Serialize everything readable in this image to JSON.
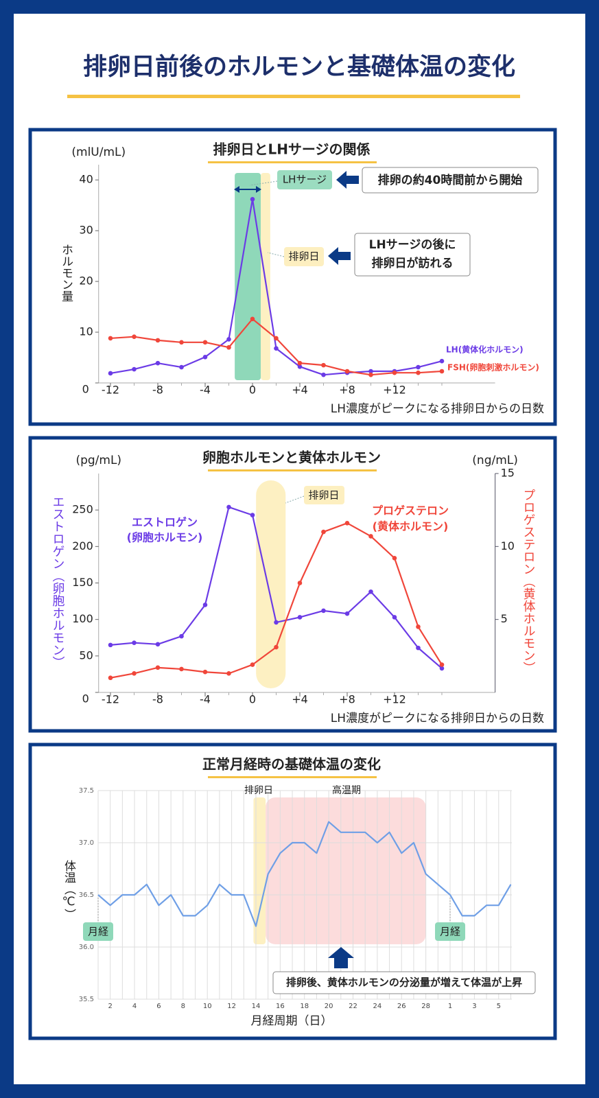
{
  "title": "排卵日前後のホルモンと基礎体温の変化",
  "chart_data": [
    {
      "type": "line",
      "title": "排卵日とLHサージの関係",
      "y_unit": "(mlU/mL)",
      "ylabel": "ホルモン量",
      "xlabel": "LH濃度がピークになる排卵日からの日数",
      "x": [
        -12,
        -10,
        -8,
        -6,
        -4,
        -2,
        0,
        2,
        4,
        6,
        8,
        10,
        12,
        14,
        16
      ],
      "xlim": [
        -13,
        20.5
      ],
      "xticks": [
        -12,
        -8,
        -4,
        0,
        {
          "value": 4,
          "label": "+4"
        },
        {
          "value": 8,
          "label": "+8"
        },
        {
          "value": 12,
          "label": "+12"
        }
      ],
      "ylim": [
        0,
        43
      ],
      "yticks": [
        0,
        10,
        20,
        30,
        40
      ],
      "series": [
        {
          "name": "LH(黄体化ホルモン)",
          "color": "#6b3be6",
          "values": [
            1.9,
            2.7,
            3.9,
            3.1,
            5.1,
            8.6,
            36.2,
            6.8,
            3.2,
            1.6,
            2.0,
            2.3,
            2.3,
            3.1,
            4.3
          ]
        },
        {
          "name": "FSH(卵胞刺激ホルモン)",
          "color": "#f0463a",
          "values": [
            8.8,
            9.1,
            8.4,
            8.0,
            8.0,
            7.0,
            12.6,
            8.8,
            3.9,
            3.5,
            2.3,
            1.6,
            2.0,
            2.0,
            2.3
          ]
        }
      ],
      "highlights": [
        {
          "label": "LHサージ",
          "x": [
            -1.5,
            0.7
          ],
          "color": "#8fd8b9"
        },
        {
          "label": "排卵日",
          "x": [
            0.7,
            1.5
          ],
          "color": "#fdf0c2"
        }
      ],
      "annotations": [
        {
          "lines": [
            "排卵の約40時間前から開始"
          ]
        },
        {
          "lines": [
            "LHサージの後に",
            "排卵日が訪れる"
          ]
        }
      ]
    },
    {
      "type": "line",
      "title": "卵胞ホルモンと黄体ホルモン",
      "y_unit": "(pg/mL)",
      "y2_unit": "(ng/mL)",
      "ylabel": "エストロゲン（卵胞ホルモン）",
      "y2label": "プロゲステロン（黄体ホルモン）",
      "xlabel": "LH濃度がピークになる排卵日からの日数",
      "x": [
        -12,
        -10,
        -8,
        -6,
        -4,
        -2,
        0,
        2,
        4,
        6,
        8,
        10,
        12,
        14,
        16
      ],
      "xlim": [
        -13,
        20.5
      ],
      "xticks": [
        -12,
        -8,
        -4,
        0,
        {
          "value": 4,
          "label": "+4"
        },
        {
          "value": 8,
          "label": "+8"
        },
        {
          "value": 12,
          "label": "+12"
        }
      ],
      "ylim": [
        0,
        300
      ],
      "yticks": [
        0,
        50,
        100,
        150,
        200,
        250
      ],
      "y2lim": [
        0,
        15
      ],
      "y2ticks": [
        5,
        10,
        15
      ],
      "series": [
        {
          "name": "エストロゲン",
          "name_sub": "(卵胞ホルモン)",
          "color": "#6b3be6",
          "values": [
            65,
            68,
            66,
            77,
            120,
            254,
            243,
            96,
            103,
            112,
            108,
            138,
            103,
            61,
            33
          ]
        },
        {
          "name": "プロゲステロン",
          "name_sub": "(黄体ホルモン)",
          "color": "#f0463a",
          "axis": "y2",
          "values": [
            1.0,
            1.3,
            1.7,
            1.6,
            1.4,
            1.3,
            1.9,
            3.1,
            7.5,
            11.0,
            11.6,
            10.7,
            9.2,
            4.5,
            1.9
          ]
        }
      ],
      "highlights": [
        {
          "label": "排卵日",
          "x": [
            0.3,
            2.8
          ],
          "color": "#fdf0c2"
        }
      ]
    },
    {
      "type": "line",
      "title": "正常月経時の基礎体温の変化",
      "ylabel": "体温（℃）",
      "xlabel": "月経周期（日）",
      "categories": [
        null,
        "2",
        null,
        "4",
        null,
        "6",
        null,
        "8",
        null,
        "10",
        null,
        "12",
        null,
        "14",
        null,
        "16",
        null,
        "18",
        null,
        "20",
        null,
        "22",
        null,
        "24",
        null,
        "26",
        null,
        "28",
        null,
        "1",
        null,
        "3",
        null,
        "5",
        null
      ],
      "ylim": [
        35.5,
        37.5
      ],
      "yticks": [
        35.5,
        {
          "value": 36,
          "label": "36.0"
        },
        36.5,
        {
          "value": 37,
          "label": "37.0"
        },
        37.5
      ],
      "grid": true,
      "color": "#6f9fe6",
      "values": [
        36.5,
        36.4,
        36.5,
        36.5,
        36.6,
        36.4,
        36.5,
        36.3,
        36.3,
        36.4,
        36.6,
        36.5,
        36.5,
        36.2,
        36.7,
        36.9,
        37.0,
        37.0,
        36.9,
        37.2,
        37.1,
        37.1,
        37.1,
        37.0,
        37.1,
        36.9,
        37.0,
        36.7,
        36.6,
        36.5,
        36.3,
        36.3,
        36.4,
        36.4,
        36.6
      ],
      "highlights": [
        {
          "label": "排卵日",
          "x": [
            12.8,
            13.8
          ],
          "color": "#fdf0c2"
        },
        {
          "label": "高温期",
          "x": [
            13.8,
            27
          ],
          "color": "#fcd6d6"
        }
      ],
      "period_labels": [
        "月経",
        "月経"
      ],
      "annotations": [
        {
          "lines": [
            "排卵後、黄体ホルモンの分泌量が増えて体温が上昇"
          ]
        }
      ]
    }
  ]
}
